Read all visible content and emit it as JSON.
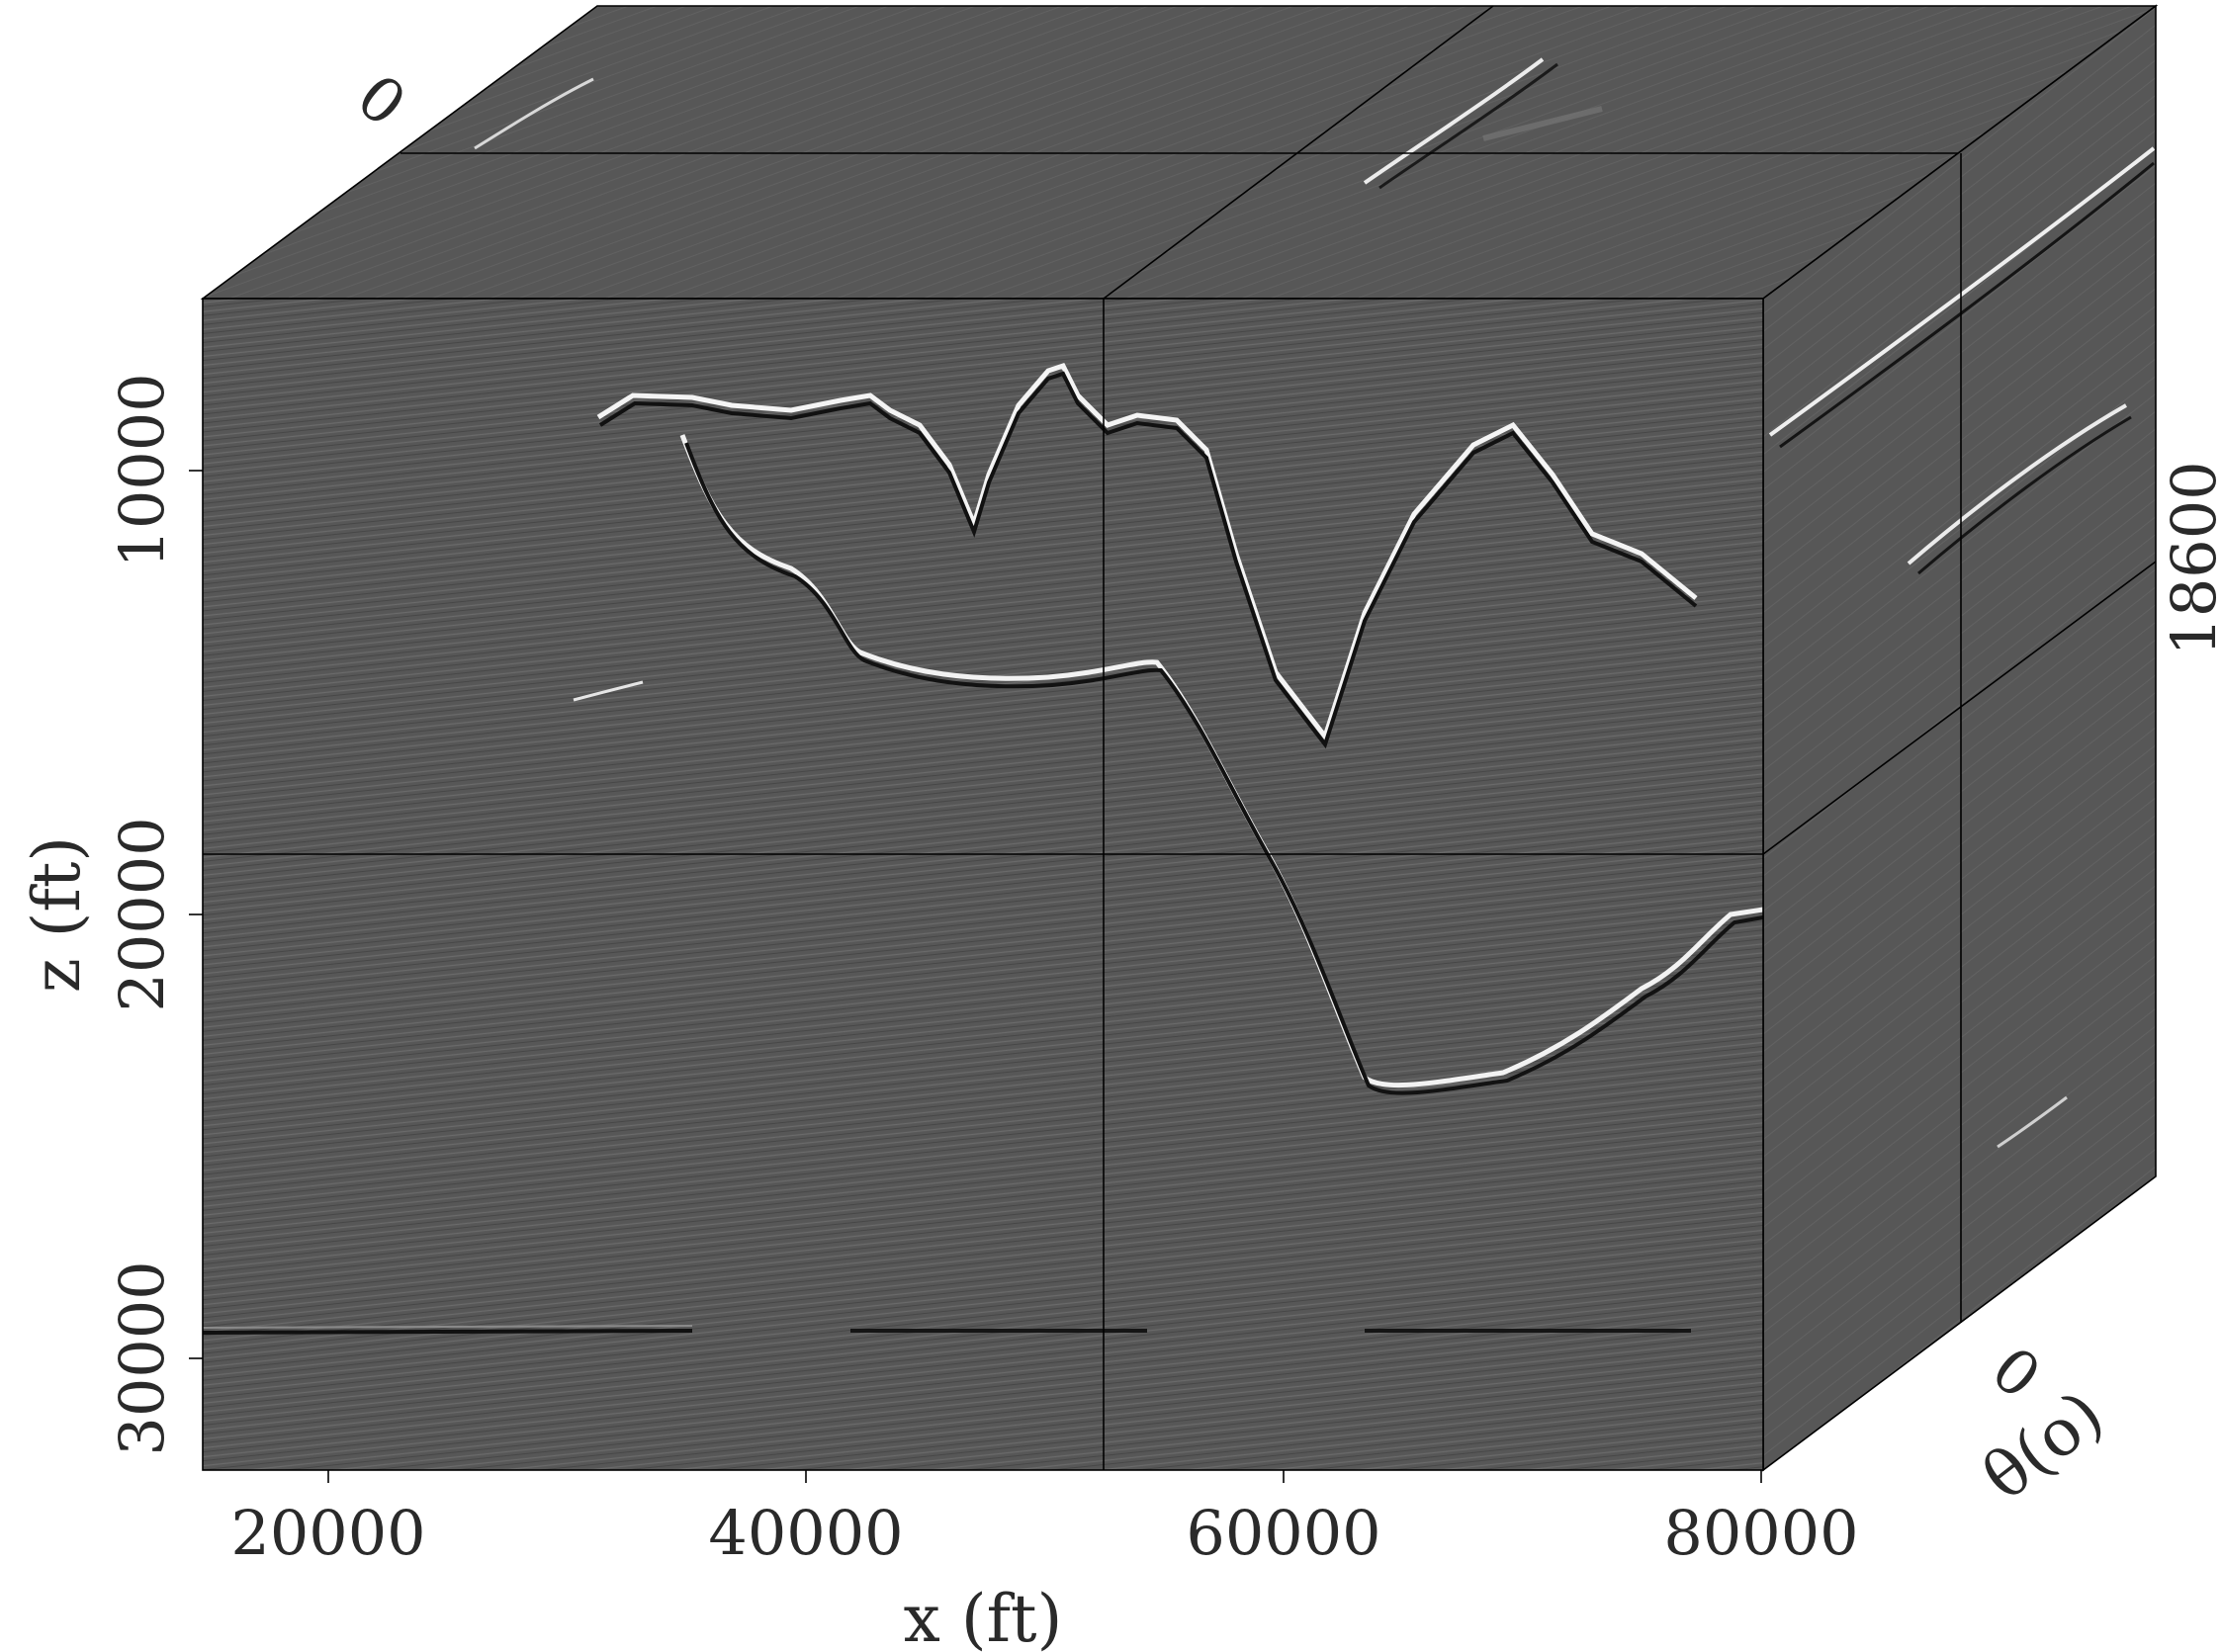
{
  "figure": {
    "type": "seismic-3d-cube",
    "colormap": "grayscale",
    "background_panel_color": "#575757",
    "reflector_bright": "#f2f2f2",
    "reflector_dark": "#101010",
    "front_face": {
      "x_label": "x (ft)",
      "x_ticks": [
        "20000",
        "40000",
        "60000",
        "80000"
      ],
      "z_label": "z (ft)",
      "z_ticks": [
        "10000",
        "20000",
        "30000"
      ]
    },
    "side_face": {
      "angle_label": "θ(o)",
      "angle_tick": "0",
      "depth_tick": "18600"
    },
    "top_face": {
      "angle_tick": "0"
    }
  }
}
